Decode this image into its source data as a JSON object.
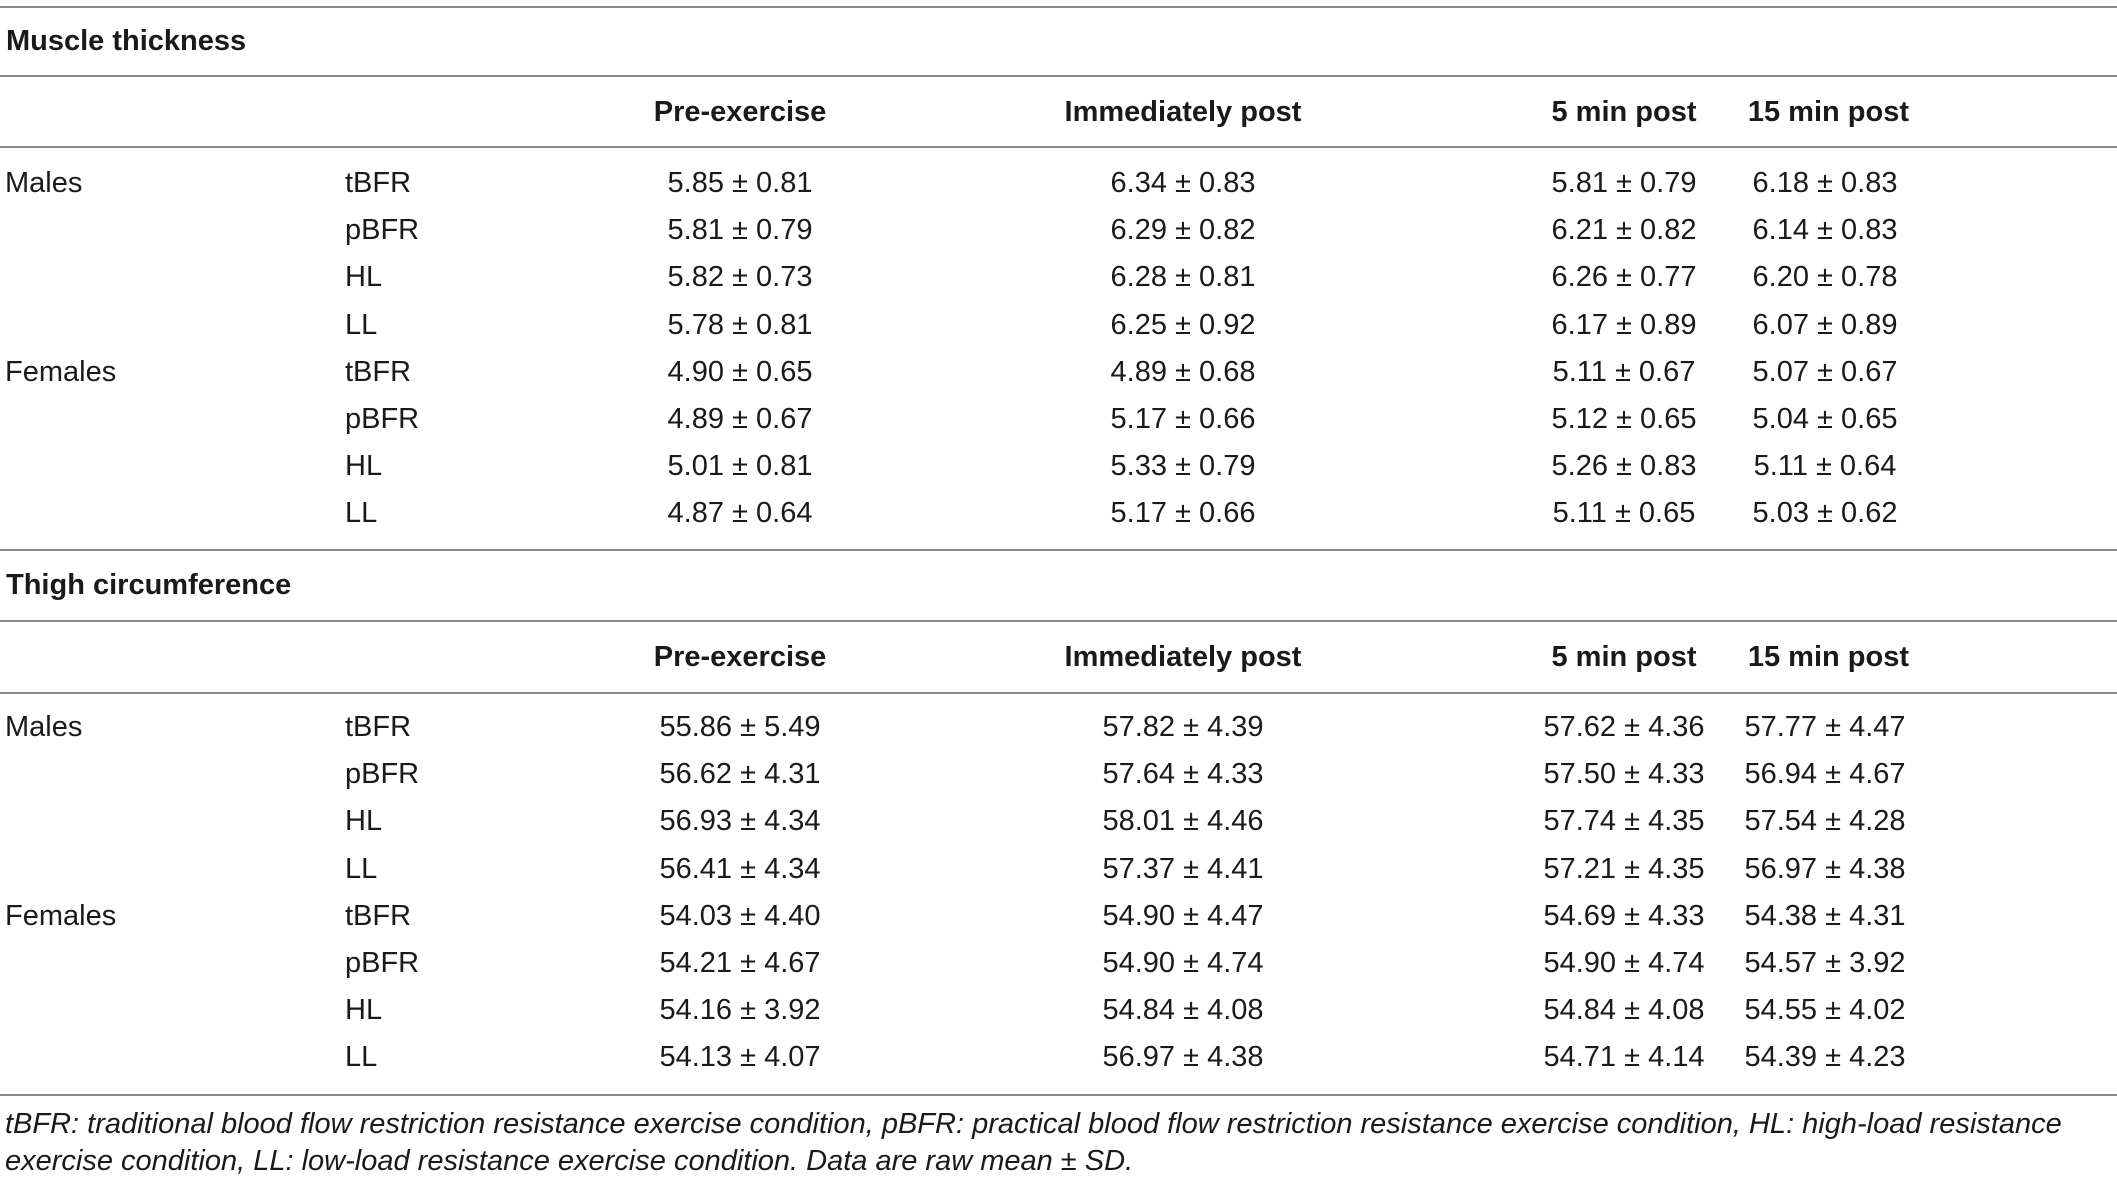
{
  "sections": [
    {
      "title": "Muscle thickness",
      "headers": [
        "",
        "",
        "Pre-exercise",
        "Immediately post",
        "5 min post",
        "15 min post"
      ],
      "rows": [
        {
          "group": "Males",
          "condition": "tBFR",
          "values": [
            "5.85 ± 0.81",
            "6.34 ± 0.83",
            "5.81 ± 0.79",
            "6.18 ± 0.83"
          ]
        },
        {
          "group": "",
          "condition": "pBFR",
          "values": [
            "5.81 ± 0.79",
            "6.29 ± 0.82",
            "6.21 ± 0.82",
            "6.14 ± 0.83"
          ]
        },
        {
          "group": "",
          "condition": "HL",
          "values": [
            "5.82 ± 0.73",
            "6.28 ± 0.81",
            "6.26 ± 0.77",
            "6.20 ± 0.78"
          ]
        },
        {
          "group": "",
          "condition": "LL",
          "values": [
            "5.78 ± 0.81",
            "6.25 ± 0.92",
            "6.17 ± 0.89",
            "6.07 ± 0.89"
          ]
        },
        {
          "group": "Females",
          "condition": "tBFR",
          "values": [
            "4.90 ± 0.65",
            "4.89 ± 0.68",
            "5.11 ± 0.67",
            "5.07 ± 0.67"
          ]
        },
        {
          "group": "",
          "condition": "pBFR",
          "values": [
            "4.89 ± 0.67",
            "5.17 ± 0.66",
            "5.12 ± 0.65",
            "5.04 ± 0.65"
          ]
        },
        {
          "group": "",
          "condition": "HL",
          "values": [
            "5.01 ± 0.81",
            "5.33 ± 0.79",
            "5.26 ± 0.83",
            "5.11 ± 0.64"
          ]
        },
        {
          "group": "",
          "condition": "LL",
          "values": [
            "4.87 ± 0.64",
            "5.17 ± 0.66",
            "5.11 ± 0.65",
            "5.03 ± 0.62"
          ]
        }
      ]
    },
    {
      "title": "Thigh circumference",
      "headers": [
        "",
        "",
        "Pre-exercise",
        "Immediately post",
        "5 min post",
        "15 min post"
      ],
      "rows": [
        {
          "group": "Males",
          "condition": "tBFR",
          "values": [
            "55.86 ± 5.49",
            "57.82 ± 4.39",
            "57.62 ± 4.36",
            "57.77 ± 4.47"
          ]
        },
        {
          "group": "",
          "condition": "pBFR",
          "values": [
            "56.62 ± 4.31",
            "57.64 ± 4.33",
            "57.50 ± 4.33",
            "56.94 ± 4.67"
          ]
        },
        {
          "group": "",
          "condition": "HL",
          "values": [
            "56.93 ± 4.34",
            "58.01 ± 4.46",
            "57.74 ± 4.35",
            "57.54 ± 4.28"
          ]
        },
        {
          "group": "",
          "condition": "LL",
          "values": [
            "56.41 ± 4.34",
            "57.37 ± 4.41",
            "57.21 ± 4.35",
            "56.97 ± 4.38"
          ]
        },
        {
          "group": "Females",
          "condition": "tBFR",
          "values": [
            "54.03 ± 4.40",
            "54.90 ± 4.47",
            "54.69 ± 4.33",
            "54.38 ± 4.31"
          ]
        },
        {
          "group": "",
          "condition": "pBFR",
          "values": [
            "54.21 ± 4.67",
            "54.90 ± 4.74",
            "54.90 ± 4.74",
            "54.57 ± 3.92"
          ]
        },
        {
          "group": "",
          "condition": "HL",
          "values": [
            "54.16 ± 3.92",
            "54.84 ± 4.08",
            "54.84 ± 4.08",
            "54.55 ± 4.02"
          ]
        },
        {
          "group": "",
          "condition": "LL",
          "values": [
            "54.13 ± 4.07",
            "56.97 ± 4.38",
            "54.71 ± 4.14",
            "54.39 ± 4.23"
          ]
        }
      ]
    }
  ],
  "footnote": "tBFR: traditional blood flow restriction resistance exercise condition, pBFR: practical blood flow restriction resistance exercise condition, HL: high-load resistance exercise condition, LL: low-load resistance exercise condition. Data are raw mean ± SD.",
  "colors": {
    "text": "#1a1a1a",
    "rule": "#8a8a8a",
    "background": "#ffffff"
  }
}
